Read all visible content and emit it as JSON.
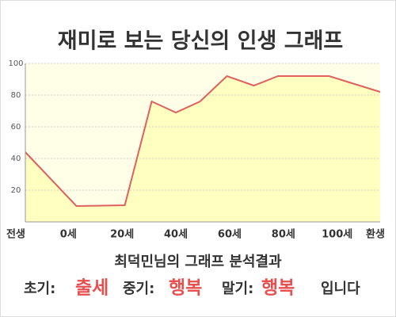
{
  "chart_data": {
    "type": "area",
    "title": "재미로 보는 당신의 인생 그래프",
    "x": [
      -16,
      3,
      21,
      31,
      40,
      49,
      59,
      69,
      78,
      97,
      116
    ],
    "values": [
      44,
      10,
      10.5,
      76,
      69,
      76,
      92,
      86,
      92,
      92,
      82
    ],
    "color": "#e06060",
    "fill": "#ffffc0",
    "xlim": [
      -16,
      116
    ],
    "xticks": [
      {
        "value": -20,
        "label": "전생"
      },
      {
        "value": 0,
        "label": "0세"
      },
      {
        "value": 20,
        "label": "20세"
      },
      {
        "value": 40,
        "label": "40세"
      },
      {
        "value": 60,
        "label": "60세"
      },
      {
        "value": 80,
        "label": "80세"
      },
      {
        "value": 100,
        "label": "100세"
      },
      {
        "value": 120,
        "label": "환생"
      }
    ],
    "ylim": [
      0,
      100
    ],
    "yticks": [
      20,
      40,
      60,
      80,
      100
    ],
    "grid": true
  },
  "result": {
    "heading": "최덕민님의 그래프 분석결과",
    "early_label": "초기:",
    "early": "출세",
    "mid_label": "중기:",
    "mid": "행복",
    "late_label": "말기:",
    "late": "행복",
    "ending": "입니다"
  }
}
